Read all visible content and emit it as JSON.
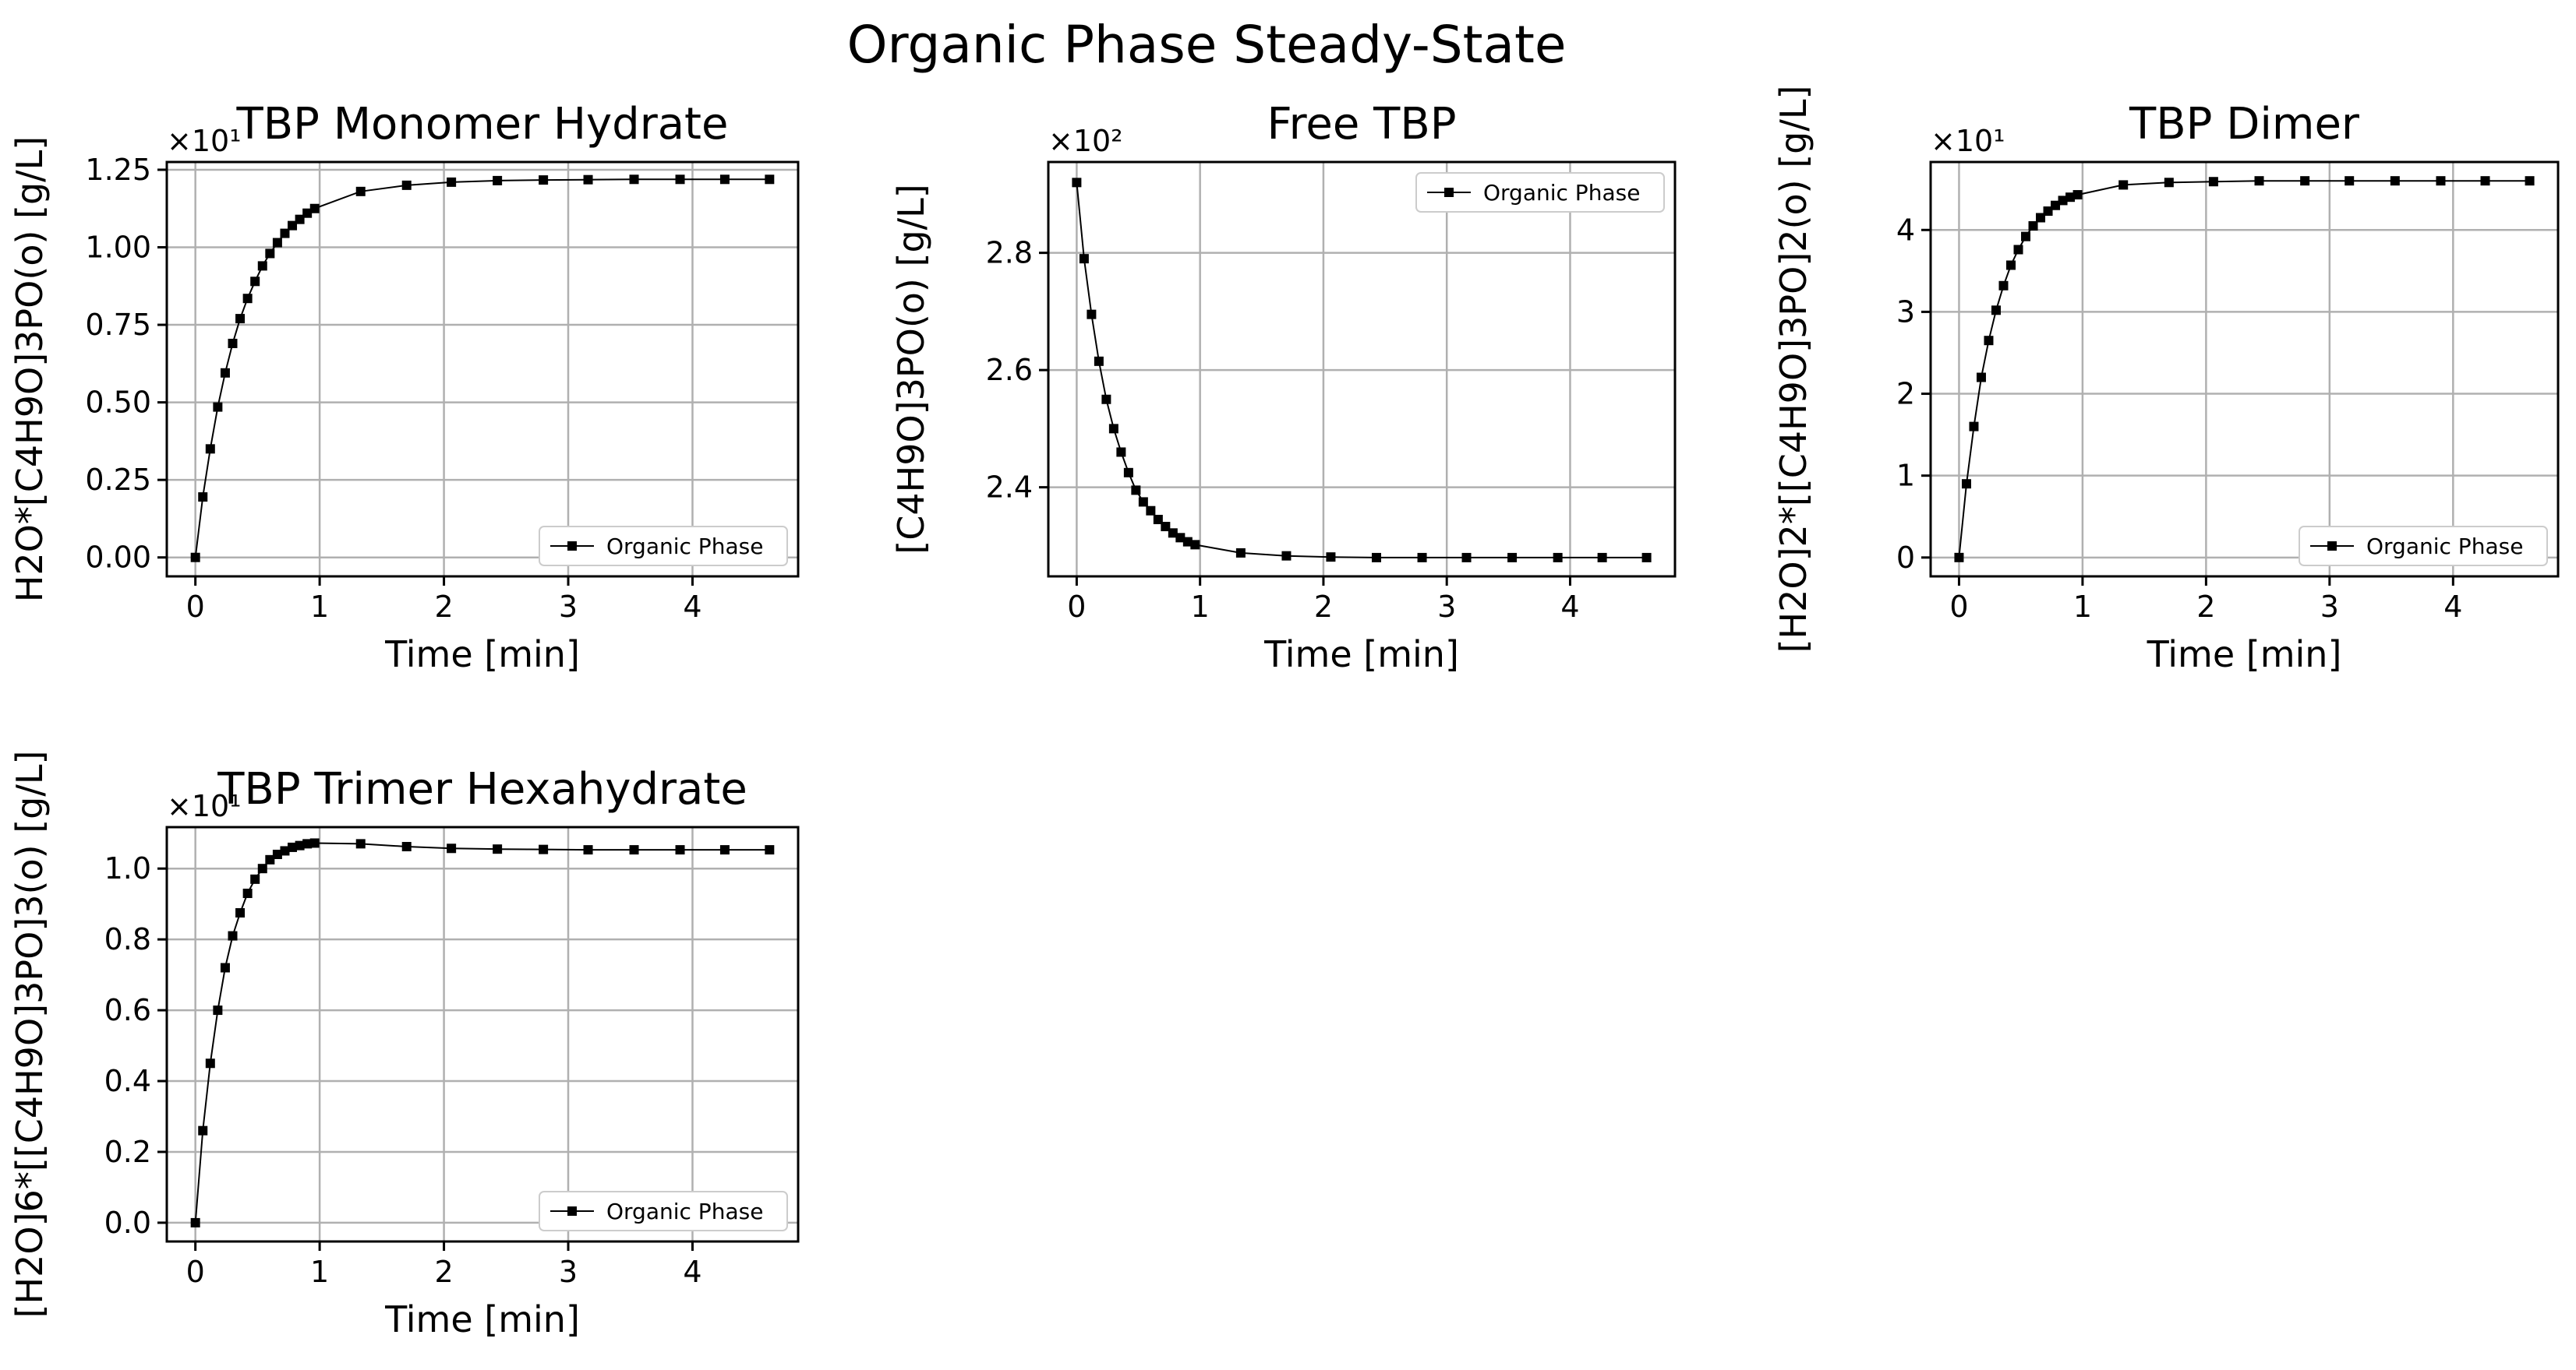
{
  "figure": {
    "suptitle": "Organic Phase Steady-State",
    "colors": {
      "line": "#000000",
      "grid": "#b0b0b0",
      "background": "#ffffff"
    }
  },
  "chart_data": [
    {
      "type": "line",
      "title": "TBP Monomer Hydrate",
      "xlabel": "Time [min]",
      "ylabel": "H2O*[C4H9O]3PO(o) [g/L]",
      "offset_text": "×10¹",
      "legend": "lower right",
      "grid": true,
      "xlim": [
        -0.23,
        4.85
      ],
      "ylim": [
        -0.061,
        1.275
      ],
      "xticks": [
        0,
        1,
        2,
        3,
        4
      ],
      "xtick_labels": [
        "0",
        "1",
        "2",
        "3",
        "4"
      ],
      "yticks": [
        0,
        0.25,
        0.5,
        0.75,
        1.0,
        1.25
      ],
      "ytick_labels": [
        "0.00",
        "0.25",
        "0.50",
        "0.75",
        "1.00",
        "1.25"
      ],
      "series": [
        {
          "name": "Organic Phase",
          "x": [
            0,
            0.06,
            0.12,
            0.18,
            0.24,
            0.3,
            0.36,
            0.42,
            0.48,
            0.54,
            0.6,
            0.66,
            0.72,
            0.78,
            0.84,
            0.9,
            0.96,
            1.33,
            1.7,
            2.06,
            2.43,
            2.8,
            3.16,
            3.53,
            3.9,
            4.26,
            4.62
          ],
          "y": [
            0.0,
            0.195,
            0.35,
            0.485,
            0.595,
            0.69,
            0.77,
            0.835,
            0.89,
            0.94,
            0.98,
            1.015,
            1.045,
            1.07,
            1.09,
            1.11,
            1.125,
            1.18,
            1.2,
            1.21,
            1.215,
            1.217,
            1.218,
            1.219,
            1.219,
            1.219,
            1.219
          ]
        }
      ]
    },
    {
      "type": "line",
      "title": "Free TBP",
      "xlabel": "Time [min]",
      "ylabel": "[C4H9O]3PO(o) [g/L]",
      "offset_text": "×10²",
      "legend": "upper right",
      "grid": true,
      "xlim": [
        -0.23,
        4.85
      ],
      "ylim": [
        2.248,
        2.955
      ],
      "xticks": [
        0,
        1,
        2,
        3,
        4
      ],
      "xtick_labels": [
        "0",
        "1",
        "2",
        "3",
        "4"
      ],
      "yticks": [
        2.4,
        2.6,
        2.8
      ],
      "ytick_labels": [
        "2.4",
        "2.6",
        "2.8"
      ],
      "series": [
        {
          "name": "Organic Phase",
          "x": [
            0,
            0.06,
            0.12,
            0.18,
            0.24,
            0.3,
            0.36,
            0.42,
            0.48,
            0.54,
            0.6,
            0.66,
            0.72,
            0.78,
            0.84,
            0.9,
            0.96,
            1.33,
            1.7,
            2.06,
            2.43,
            2.8,
            3.16,
            3.53,
            3.9,
            4.26,
            4.62
          ],
          "y": [
            2.92,
            2.79,
            2.695,
            2.615,
            2.55,
            2.5,
            2.46,
            2.425,
            2.395,
            2.375,
            2.36,
            2.345,
            2.333,
            2.322,
            2.314,
            2.307,
            2.302,
            2.288,
            2.283,
            2.281,
            2.28,
            2.28,
            2.28,
            2.28,
            2.28,
            2.28,
            2.28
          ]
        }
      ]
    },
    {
      "type": "line",
      "title": "TBP Dimer",
      "xlabel": "Time [min]",
      "ylabel": "[H2O]2*[[C4H9O]3PO]2(o) [g/L]",
      "offset_text": "×10¹",
      "legend": "lower right",
      "grid": true,
      "xlim": [
        -0.23,
        4.85
      ],
      "ylim": [
        -0.23,
        4.83
      ],
      "xticks": [
        0,
        1,
        2,
        3,
        4
      ],
      "xtick_labels": [
        "0",
        "1",
        "2",
        "3",
        "4"
      ],
      "yticks": [
        0,
        1,
        2,
        3,
        4
      ],
      "ytick_labels": [
        "0",
        "1",
        "2",
        "3",
        "4"
      ],
      "series": [
        {
          "name": "Organic Phase",
          "x": [
            0,
            0.06,
            0.12,
            0.18,
            0.24,
            0.3,
            0.36,
            0.42,
            0.48,
            0.54,
            0.6,
            0.66,
            0.72,
            0.78,
            0.84,
            0.9,
            0.96,
            1.33,
            1.7,
            2.06,
            2.43,
            2.8,
            3.16,
            3.53,
            3.9,
            4.26,
            4.62
          ],
          "y": [
            0.0,
            0.9,
            1.6,
            2.2,
            2.65,
            3.02,
            3.32,
            3.57,
            3.76,
            3.92,
            4.05,
            4.15,
            4.23,
            4.3,
            4.36,
            4.4,
            4.43,
            4.55,
            4.58,
            4.59,
            4.6,
            4.6,
            4.6,
            4.6,
            4.6,
            4.6,
            4.6
          ]
        }
      ]
    },
    {
      "type": "line",
      "title": "TBP Trimer Hexahydrate",
      "xlabel": "Time [min]",
      "ylabel": "[H2O]6*[[C4H9O]3PO]3(o) [g/L]",
      "offset_text": "×10¹",
      "legend": "lower right",
      "grid": true,
      "xlim": [
        -0.23,
        4.85
      ],
      "ylim": [
        -0.053,
        1.117
      ],
      "xticks": [
        0,
        1,
        2,
        3,
        4
      ],
      "xtick_labels": [
        "0",
        "1",
        "2",
        "3",
        "4"
      ],
      "yticks": [
        0,
        0.2,
        0.4,
        0.6,
        0.8,
        1.0
      ],
      "ytick_labels": [
        "0.0",
        "0.2",
        "0.4",
        "0.6",
        "0.8",
        "1.0"
      ],
      "series": [
        {
          "name": "Organic Phase",
          "x": [
            0,
            0.06,
            0.12,
            0.18,
            0.24,
            0.3,
            0.36,
            0.42,
            0.48,
            0.54,
            0.6,
            0.66,
            0.72,
            0.78,
            0.84,
            0.9,
            0.96,
            1.33,
            1.7,
            2.06,
            2.43,
            2.8,
            3.16,
            3.53,
            3.9,
            4.26,
            4.62
          ],
          "y": [
            0.0,
            0.26,
            0.45,
            0.6,
            0.72,
            0.81,
            0.875,
            0.93,
            0.97,
            1.0,
            1.025,
            1.04,
            1.05,
            1.06,
            1.065,
            1.07,
            1.072,
            1.07,
            1.062,
            1.057,
            1.055,
            1.054,
            1.053,
            1.053,
            1.053,
            1.053,
            1.053
          ]
        }
      ]
    }
  ]
}
